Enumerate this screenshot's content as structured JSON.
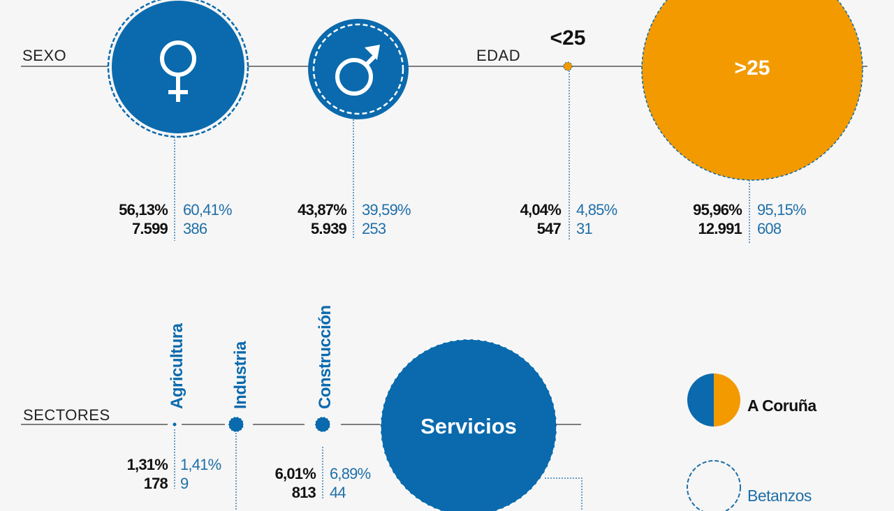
{
  "colors": {
    "a_coruna": "#0a6aad",
    "age_over25": "#f29a00",
    "betanzos_text": "#1f6fa8",
    "background": "#f6f6f6"
  },
  "chart_data": {
    "type": "bubble",
    "sexo": {
      "label": "SEXO",
      "items": [
        {
          "name": "mujer",
          "icon": "female-icon",
          "coruna_pct": "56,13%",
          "coruna_n": "7.599",
          "betanzos_pct": "60,41%",
          "betanzos_n": "386"
        },
        {
          "name": "hombre",
          "icon": "male-icon",
          "coruna_pct": "43,87%",
          "coruna_n": "5.939",
          "betanzos_pct": "39,59%",
          "betanzos_n": "253"
        }
      ]
    },
    "edad": {
      "label": "EDAD",
      "items": [
        {
          "name": "<25",
          "coruna_pct": "4,04%",
          "coruna_n": "547",
          "betanzos_pct": "4,85%",
          "betanzos_n": "31"
        },
        {
          "name": ">25",
          "coruna_pct": "95,96%",
          "coruna_n": "12.991",
          "betanzos_pct": "95,15%",
          "betanzos_n": "608"
        }
      ]
    },
    "sectores": {
      "label": "SECTORES",
      "items": [
        {
          "name": "Agricultura",
          "coruna_pct": "1,31%",
          "coruna_n": "178",
          "betanzos_pct": "1,41%",
          "betanzos_n": "9"
        },
        {
          "name": "Industria"
        },
        {
          "name": "Construcción",
          "coruna_pct": "6,01%",
          "coruna_n": "813",
          "betanzos_pct": "6,89%",
          "betanzos_n": "44"
        },
        {
          "name": "Servicios"
        }
      ]
    },
    "legend": {
      "a_coruna": "A Coruña",
      "betanzos": "Betanzos",
      "placement": "right"
    }
  }
}
